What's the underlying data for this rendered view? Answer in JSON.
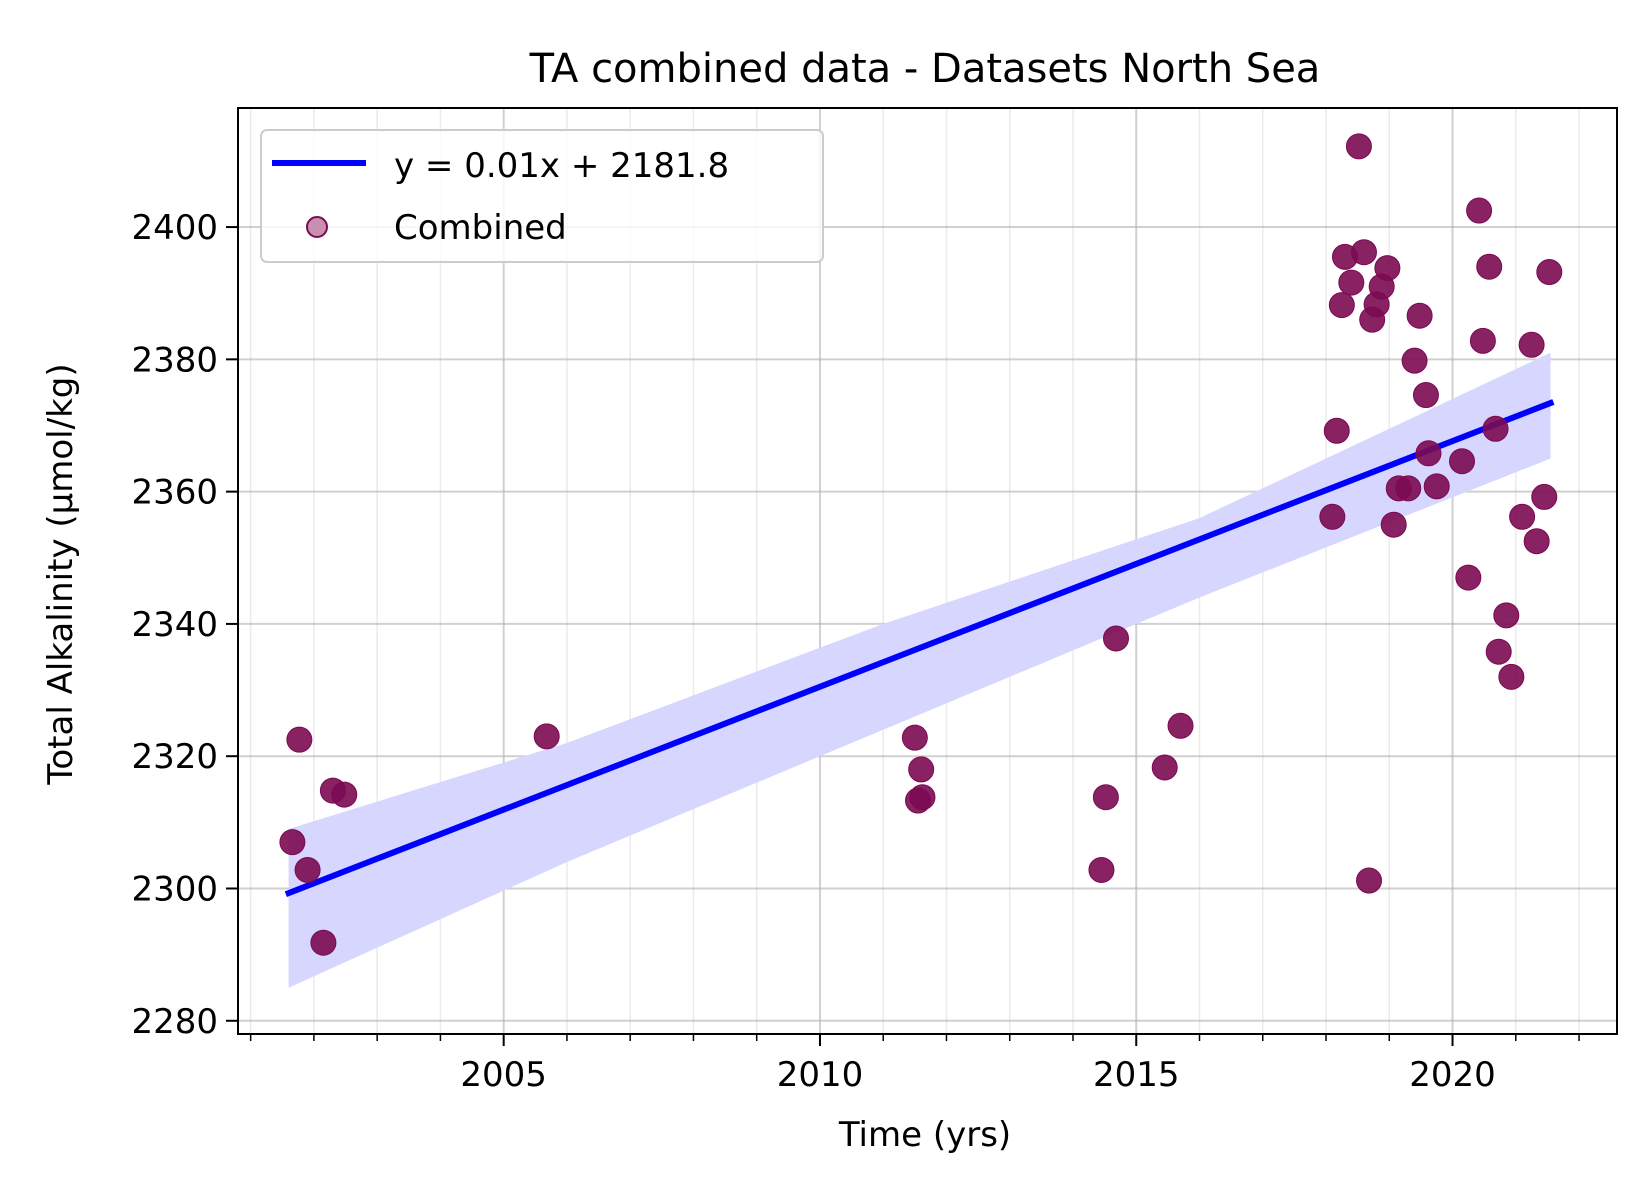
{
  "chart_data": {
    "type": "scatter",
    "title": "TA combined data - Datasets North Sea",
    "xlabel": "Time (yrs)",
    "ylabel": "Total Alkalinity (µmol/kg)",
    "xlim": [
      2000.8,
      2022.6
    ],
    "ylim": [
      2278,
      2418
    ],
    "x_ticks": [
      2005,
      2010,
      2015,
      2020
    ],
    "y_ticks": [
      2280,
      2300,
      2320,
      2340,
      2360,
      2380,
      2400
    ],
    "grid": true,
    "legend_position": "top-left",
    "legend": [
      "y = 0.01x + 2181.8",
      "Combined"
    ],
    "colors": {
      "points": "#7b0a52",
      "fit_line": "#0000ff",
      "confidence_band": "#d6d6ff",
      "legend_marker": "#c98fb2"
    },
    "series": [
      {
        "name": "Combined",
        "kind": "scatter",
        "points": [
          [
            2001.66,
            2307
          ],
          [
            2001.77,
            2322.5
          ],
          [
            2001.9,
            2302.8
          ],
          [
            2002.15,
            2291.8
          ],
          [
            2002.3,
            2314.8
          ],
          [
            2002.48,
            2314.2
          ],
          [
            2005.68,
            2323
          ],
          [
            2011.5,
            2322.8
          ],
          [
            2011.55,
            2313.3
          ],
          [
            2011.6,
            2318
          ],
          [
            2011.62,
            2313.8
          ],
          [
            2014.45,
            2302.8
          ],
          [
            2014.52,
            2313.8
          ],
          [
            2014.68,
            2337.8
          ],
          [
            2015.45,
            2318.3
          ],
          [
            2015.7,
            2324.6
          ],
          [
            2018.1,
            2356.2
          ],
          [
            2018.17,
            2369.2
          ],
          [
            2018.25,
            2388.2
          ],
          [
            2018.3,
            2395.5
          ],
          [
            2018.4,
            2391.6
          ],
          [
            2018.52,
            2412.2
          ],
          [
            2018.6,
            2396.2
          ],
          [
            2018.68,
            2301.2
          ],
          [
            2018.73,
            2386
          ],
          [
            2018.8,
            2388.3
          ],
          [
            2018.88,
            2391
          ],
          [
            2018.97,
            2393.8
          ],
          [
            2019.07,
            2355
          ],
          [
            2019.15,
            2360.5
          ],
          [
            2019.3,
            2360.5
          ],
          [
            2019.4,
            2379.8
          ],
          [
            2019.48,
            2386.6
          ],
          [
            2019.58,
            2374.6
          ],
          [
            2019.62,
            2365.8
          ],
          [
            2019.75,
            2360.8
          ],
          [
            2020.15,
            2364.6
          ],
          [
            2020.25,
            2347
          ],
          [
            2020.42,
            2402.5
          ],
          [
            2020.48,
            2382.8
          ],
          [
            2020.58,
            2394
          ],
          [
            2020.68,
            2369.5
          ],
          [
            2020.73,
            2335.8
          ],
          [
            2020.85,
            2341.3
          ],
          [
            2020.93,
            2332
          ],
          [
            2021.1,
            2356.2
          ],
          [
            2021.25,
            2382.2
          ],
          [
            2021.33,
            2352.5
          ],
          [
            2021.45,
            2359.2
          ],
          [
            2021.53,
            2393.2
          ]
        ]
      },
      {
        "name": "y = 0.01x + 2181.8",
        "kind": "line",
        "x": [
          2001.6,
          2021.55
        ],
        "y": [
          2299.3,
          2373.4
        ]
      }
    ],
    "confidence_band": {
      "x": [
        2001.6,
        2006,
        2011,
        2016,
        2021.55
      ],
      "upper": [
        2309,
        2322,
        2340,
        2356,
        2381
      ],
      "lower": [
        2285,
        2304,
        2324,
        2344,
        2365
      ]
    }
  }
}
